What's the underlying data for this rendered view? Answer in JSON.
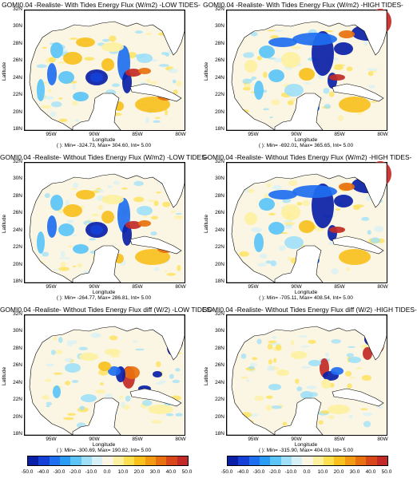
{
  "panels": [
    {
      "title": "GOMI0.04 -Realiste- With Tides Energy Flux (W/m2) -LOW TIDES-",
      "stats": "( ): Min= -324.73, Max= 304.60, Int= 5.00",
      "xlabel": "Longitude",
      "ylabel": "Latitude",
      "variant": "a"
    },
    {
      "title": "GOMI0.04 -Realiste- With Tides Energy Flux (W/m2) -HIGH TIDES-",
      "stats": "( ): Min= -692.01, Max= 365.65, Int= 5.00",
      "xlabel": "Longitude",
      "ylabel": "Latitude",
      "variant": "b"
    },
    {
      "title": "GOMI0.04 -Realiste- Without Tides Energy Flux (W/m2) -LOW TIDES-",
      "stats": "( ): Min= -264.77, Max= 286.81, Int= 5.00",
      "xlabel": "Longitude",
      "ylabel": "Latitude",
      "variant": "a"
    },
    {
      "title": "GOMI0.04 -Realiste- Without Tides Energy Flux (W/m2) -HIGH TIDES-",
      "stats": "( ): Min= -705.11, Max= 408.54, Int= 5.00",
      "xlabel": "Longitude",
      "ylabel": "Latitude",
      "variant": "b"
    },
    {
      "title": "GOMI0.04 -Realiste- Without Tides Energy Flux diff (W/2) -LOW TIDES-",
      "stats": "( ): Min= -300.69, Max= 190.82, Int= 5.00",
      "xlabel": "Longitude",
      "ylabel": "Latitude",
      "variant": "c"
    },
    {
      "title": "GOMI0.04 -Realiste- Without Tides Energy Flux diff (W/2) -HIGH TIDES-",
      "stats": "( ): Min= -315.90, Max= 404.03, Int= 5.00",
      "xlabel": "Longitude",
      "ylabel": "Latitude",
      "variant": "d"
    }
  ],
  "lat_ticks": [
    "32N",
    "30N",
    "28N",
    "26N",
    "24N",
    "22N",
    "20N",
    "18N"
  ],
  "lon_ticks": [
    "95W",
    "90W",
    "85W",
    "80W"
  ],
  "colorbar": {
    "labels": [
      "-50.0",
      "-40.0",
      "-30.0",
      "-20.0",
      "-10.0",
      "0.0",
      "10.0",
      "20.0",
      "30.0",
      "40.0",
      "50.0"
    ],
    "colors": [
      "#0a1fa8",
      "#1440d8",
      "#1e6ef0",
      "#2a9cf5",
      "#5cc4f7",
      "#9fe0f8",
      "#d7f0f5",
      "#fbf6e3",
      "#fdf0a0",
      "#fde050",
      "#f9c01e",
      "#f29a14",
      "#e8700e",
      "#d8461a",
      "#c22a28"
    ]
  }
}
